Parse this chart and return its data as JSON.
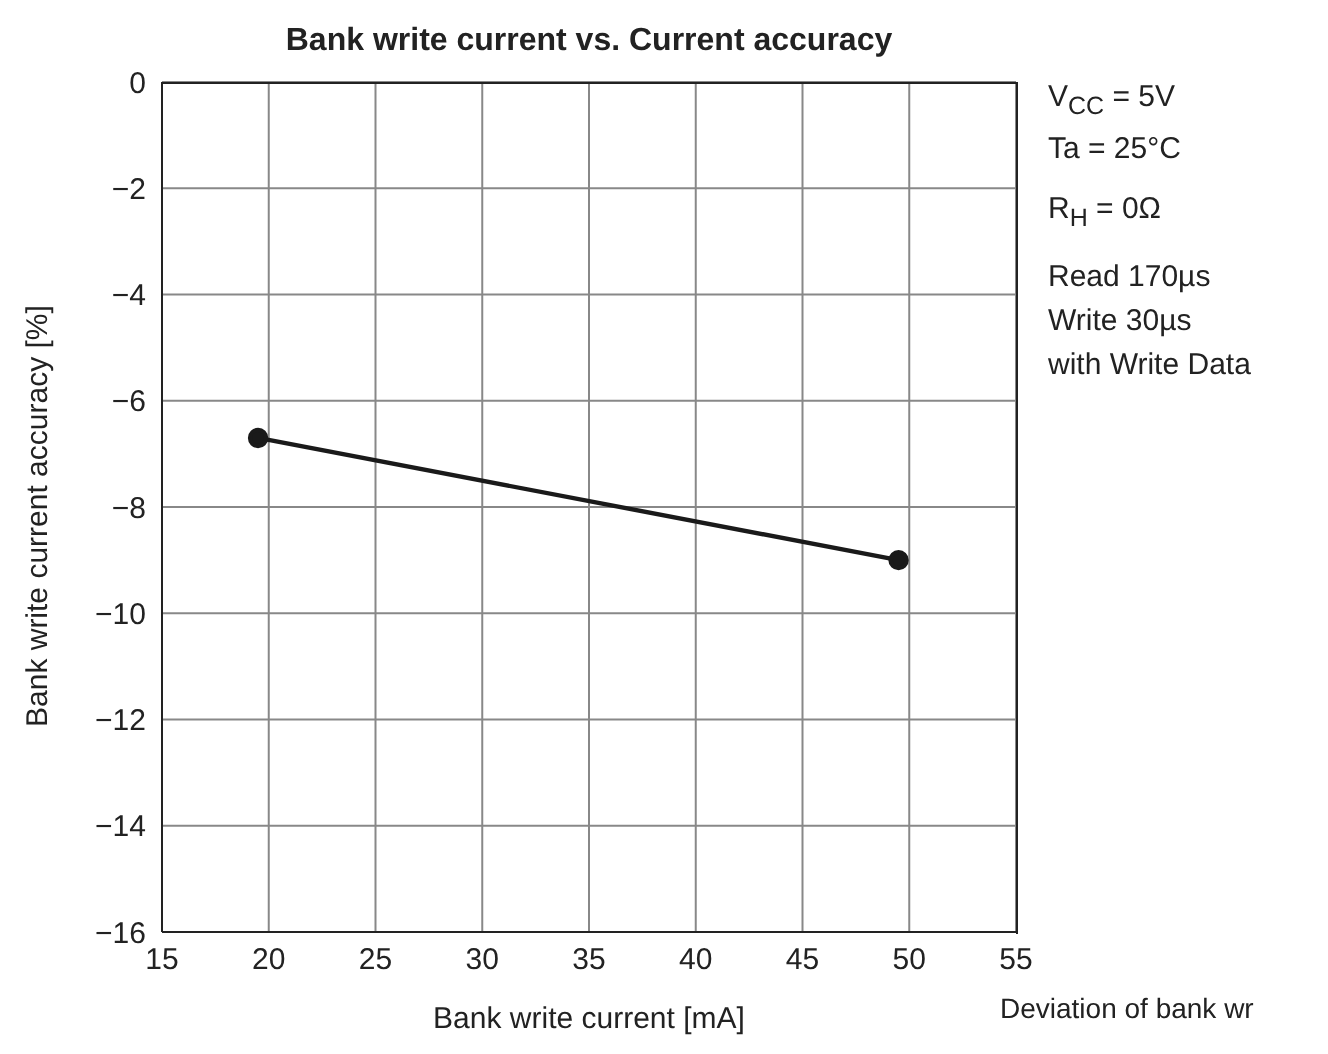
{
  "chart_data": {
    "type": "line",
    "title": "Bank write current vs. Current accuracy",
    "xlabel": "Bank write current [mA]",
    "ylabel": "Bank write current accuracy [%]",
    "x": [
      19.5,
      49.5
    ],
    "series": [
      {
        "color": "#1a1a1a",
        "values": [
          -6.7,
          -9.0
        ]
      }
    ],
    "xlim": [
      15,
      55
    ],
    "xticks": [
      15,
      20,
      25,
      30,
      35,
      40,
      45,
      50,
      55
    ],
    "ylim": [
      -16,
      0
    ],
    "yticks": [
      {
        "value": -16,
        "label": "−16"
      },
      {
        "value": -14,
        "label": "−14"
      },
      {
        "value": -12,
        "label": "−12"
      },
      {
        "value": -10,
        "label": "−10"
      },
      {
        "value": -8,
        "label": "−8"
      },
      {
        "value": -6,
        "label": "−6"
      },
      {
        "value": -4,
        "label": "−4"
      },
      {
        "value": -2,
        "label": "−2"
      },
      0
    ],
    "grid": true,
    "marker": "circle",
    "line_style": "solid",
    "annotations": [
      "V$_{CC}$ = 5V",
      "Ta = 25°C",
      "R$_{H}$ = 0Ω",
      "Read 170µs",
      "Write 30µs",
      "with Write Data",
      "Deviation of bank wr"
    ]
  }
}
